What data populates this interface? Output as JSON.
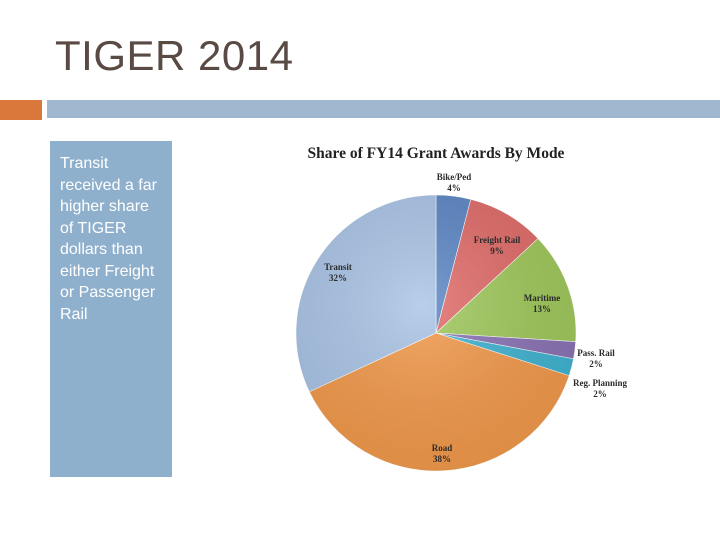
{
  "slide": {
    "title": "TIGER 2014",
    "side_text": "Transit received a far higher share of TIGER dollars than either Freight or Passenger Rail"
  },
  "colors": {
    "accent_orange": "#d9783a",
    "accent_blue": "#9fb8cf",
    "side_box": "#8fb0cc"
  },
  "chart_data": {
    "type": "pie",
    "title": "Share of FY14 Grant Awards By Mode",
    "slices": [
      {
        "label": "Bike/Ped",
        "pct_label": "4%",
        "value": 4,
        "color": "#5b86c4"
      },
      {
        "label": "Freight Rail",
        "pct_label": "9%",
        "value": 9,
        "color": "#e06b68"
      },
      {
        "label": "Maritime",
        "pct_label": "13%",
        "value": 13,
        "color": "#9fc85a"
      },
      {
        "label": "Pass. Rail",
        "pct_label": "2%",
        "value": 2,
        "color": "#8a72b5"
      },
      {
        "label": "Reg. Planning",
        "pct_label": "2%",
        "value": 2,
        "color": "#3fb3d1"
      },
      {
        "label": "Road",
        "pct_label": "38%",
        "value": 38,
        "color": "#f2994a"
      },
      {
        "label": "Transit",
        "pct_label": "32%",
        "value": 32,
        "color": "#a9c4e6"
      }
    ]
  }
}
